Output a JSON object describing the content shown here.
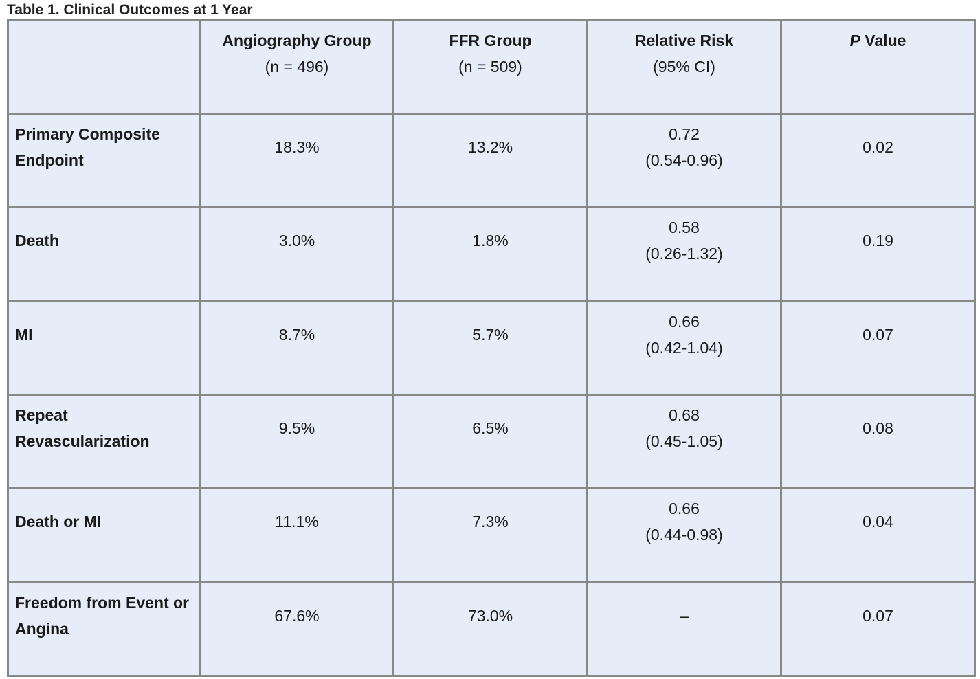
{
  "caption": "Table 1. Clinical Outcomes at 1 Year",
  "columns": [
    {
      "title": "",
      "subtitle": ""
    },
    {
      "title": "Angiography Group",
      "subtitle": "(n = 496)"
    },
    {
      "title": "FFR Group",
      "subtitle": "(n = 509)"
    },
    {
      "title": "Relative Risk",
      "subtitle": "(95% CI)"
    },
    {
      "title_italic": "P",
      "title": " Value",
      "subtitle": ""
    }
  ],
  "rows": [
    {
      "label": "Primary Composite Endpoint",
      "angiography": "18.3%",
      "ffr": "13.2%",
      "rr": "0.72",
      "ci": "(0.54-0.96)",
      "p": "0.02"
    },
    {
      "label": "Death",
      "angiography": "3.0%",
      "ffr": "1.8%",
      "rr": "0.58",
      "ci": "(0.26-1.32)",
      "p": "0.19"
    },
    {
      "label": "MI",
      "angiography": "8.7%",
      "ffr": "5.7%",
      "rr": "0.66",
      "ci": "(0.42-1.04)",
      "p": "0.07"
    },
    {
      "label": "Repeat Revascularization",
      "angiography": "9.5%",
      "ffr": "6.5%",
      "rr": "0.68",
      "ci": "(0.45-1.05)",
      "p": "0.08"
    },
    {
      "label": "Death or MI",
      "angiography": "11.1%",
      "ffr": "7.3%",
      "rr": "0.66",
      "ci": "(0.44-0.98)",
      "p": "0.04"
    },
    {
      "label": "Freedom from Event or Angina",
      "angiography": "67.6%",
      "ffr": "73.0%",
      "rr": "–",
      "ci": "",
      "p": "0.07"
    }
  ]
}
